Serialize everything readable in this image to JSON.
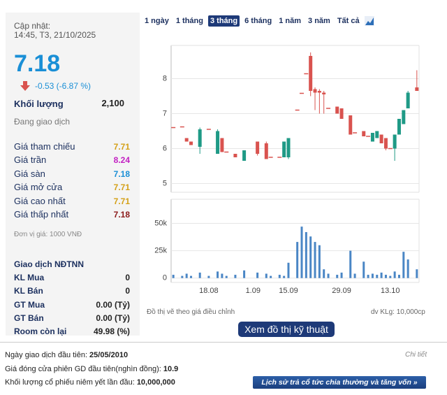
{
  "header": {
    "update_label": "Cập nhật:",
    "update_time": "14:45, T3, 21/10/2025"
  },
  "price": {
    "value": "7.18",
    "change": "-0.53 (-6.87 %)",
    "volume_label": "Khối lượng",
    "volume": "2,100",
    "status": "Đang giao dịch"
  },
  "price_table": {
    "rows": [
      {
        "label": "Giá tham chiếu",
        "value": "7.71",
        "color": "#d4a017"
      },
      {
        "label": "Giá trần",
        "value": "8.24",
        "color": "#c21fc2"
      },
      {
        "label": "Giá sàn",
        "value": "7.18",
        "color": "#1a8fd6"
      },
      {
        "label": "Giá mở cửa",
        "value": "7.71",
        "color": "#d4a017"
      },
      {
        "label": "Giá cao nhất",
        "value": "7.71",
        "color": "#d4a017"
      },
      {
        "label": "Giá thấp nhất",
        "value": "7.18",
        "color": "#8b1a1a"
      }
    ],
    "unit_note": "Đơn vị giá: 1000 VNĐ"
  },
  "foreign": {
    "title": "Giao dịch NĐTNN",
    "rows": [
      {
        "label": "KL Mua",
        "value": "0"
      },
      {
        "label": "KL Bán",
        "value": "0"
      },
      {
        "label": "GT Mua",
        "value": "0.00 (Tỷ)"
      },
      {
        "label": "GT Bán",
        "value": "0.00 (Tỷ)"
      },
      {
        "label": "Room còn lại",
        "value": "49.98 (%)"
      }
    ]
  },
  "range_buttons": {
    "labels": [
      "1 ngày",
      "1 tháng",
      "3 tháng",
      "6 tháng",
      "1 năm",
      "3 năm",
      "Tất cả"
    ],
    "active": 2
  },
  "chart_data": [
    {
      "type": "candlestick",
      "up_color": "#1f9a86",
      "down_color": "#d9534f",
      "ylim": [
        4.75,
        8.95
      ],
      "yticks": [
        5,
        6,
        7,
        8
      ],
      "grid": true,
      "open": [
        6.6,
        null,
        6.62,
        6.3,
        6.2,
        null,
        6.05,
        null,
        6.55,
        null,
        5.85,
        6.3,
        5.9,
        null,
        5.85,
        null,
        5.65,
        null,
        null,
        6.2,
        null,
        6.15,
        5.75,
        null,
        5.75,
        5.75,
        5.75,
        null,
        7.1,
        7.58,
        8.14,
        8.65,
        7.7,
        7.65,
        7.6,
        7.15,
        null,
        7.2,
        7.15,
        null,
        6.95,
        6.45,
        null,
        6.5,
        6.35,
        6.2,
        6.3,
        6.4,
        6.3,
        6.0,
        6.0,
        6.4,
        6.7,
        7.15,
        null,
        7.75
      ],
      "high": [
        6.6,
        null,
        6.62,
        6.3,
        6.2,
        null,
        6.6,
        null,
        6.55,
        null,
        6.55,
        6.3,
        5.9,
        null,
        5.85,
        null,
        5.95,
        null,
        null,
        6.2,
        null,
        6.2,
        5.75,
        null,
        5.75,
        6.2,
        6.3,
        null,
        7.1,
        7.58,
        8.14,
        8.75,
        7.75,
        7.7,
        7.65,
        7.15,
        null,
        7.2,
        7.15,
        null,
        6.95,
        6.45,
        null,
        6.5,
        6.35,
        6.45,
        6.5,
        6.4,
        6.3,
        6.0,
        6.4,
        6.85,
        7.1,
        7.65,
        null,
        8.24
      ],
      "low": [
        6.6,
        null,
        6.62,
        6.2,
        6.1,
        null,
        5.85,
        null,
        6.55,
        null,
        5.85,
        5.9,
        5.9,
        null,
        5.75,
        null,
        5.65,
        null,
        null,
        5.8,
        null,
        5.7,
        5.75,
        null,
        5.75,
        5.75,
        5.7,
        null,
        7.1,
        7.58,
        8.14,
        7.5,
        7.1,
        7.0,
        7.0,
        7.15,
        null,
        7.0,
        6.85,
        null,
        6.4,
        6.45,
        null,
        6.35,
        6.35,
        6.2,
        6.3,
        6.15,
        5.95,
        6.0,
        5.65,
        6.4,
        6.7,
        7.15,
        null,
        7.65
      ],
      "close": [
        6.6,
        null,
        6.62,
        6.2,
        6.1,
        null,
        6.55,
        null,
        6.55,
        null,
        6.5,
        5.9,
        5.9,
        null,
        5.75,
        null,
        5.95,
        null,
        null,
        5.85,
        null,
        5.7,
        5.75,
        null,
        5.75,
        6.2,
        6.3,
        null,
        7.1,
        7.58,
        8.14,
        7.65,
        7.6,
        7.6,
        7.55,
        7.15,
        null,
        7.0,
        6.85,
        null,
        6.4,
        6.45,
        null,
        6.35,
        6.35,
        6.45,
        6.5,
        6.15,
        6.0,
        6.0,
        6.4,
        6.85,
        7.1,
        7.6,
        null,
        7.65
      ]
    },
    {
      "type": "bar",
      "color": "#4a86c5",
      "categories": [
        null,
        null,
        null,
        null,
        null,
        null,
        null,
        null,
        "18.08",
        null,
        null,
        null,
        null,
        null,
        null,
        null,
        null,
        null,
        "1.09",
        null,
        null,
        null,
        null,
        null,
        null,
        null,
        "15.09",
        null,
        null,
        null,
        null,
        null,
        null,
        null,
        null,
        null,
        null,
        null,
        "29.09",
        null,
        null,
        null,
        null,
        null,
        null,
        null,
        null,
        null,
        null,
        "13.10",
        null,
        null,
        null,
        null,
        null,
        null
      ],
      "values": [
        3000,
        null,
        2000,
        4000,
        2000,
        null,
        5000,
        null,
        2000,
        null,
        6000,
        4000,
        2000,
        null,
        3000,
        null,
        7000,
        null,
        null,
        5000,
        null,
        4000,
        2000,
        null,
        3000,
        2000,
        14000,
        null,
        33000,
        47000,
        42000,
        38000,
        33000,
        30000,
        8000,
        4000,
        null,
        3000,
        5000,
        null,
        25000,
        4000,
        null,
        15000,
        3000,
        4000,
        3000,
        5000,
        3000,
        2000,
        6000,
        3000,
        24000,
        17000,
        null,
        8000
      ],
      "ylim": [
        -4000,
        72000
      ],
      "yticks": [
        0,
        {
          "value": 25000,
          "label": "25k"
        },
        {
          "value": 50000,
          "label": "50k"
        }
      ],
      "grid": true
    }
  ],
  "chart_notes": {
    "adjusted": "Đồ thị vẽ theo giá điều chỉnh",
    "volume_unit": "dv KLg: 10,000cp",
    "tech_button": "Xem đồ thị kỹ thuật"
  },
  "footer": {
    "lines": [
      {
        "label": "Ngày giao dịch đầu tiên:",
        "value": "25/05/2010"
      },
      {
        "label": "Giá đóng cửa phiên GD đầu tiên(nghìn đồng):",
        "value": "10.9"
      },
      {
        "label": "Khối lượng cổ phiếu niêm yết lần đầu:",
        "value": "10,000,000"
      }
    ],
    "detail": "Chi tiết",
    "history_button": "Lịch sử trả cổ tức chia thường và tăng vốn »"
  }
}
